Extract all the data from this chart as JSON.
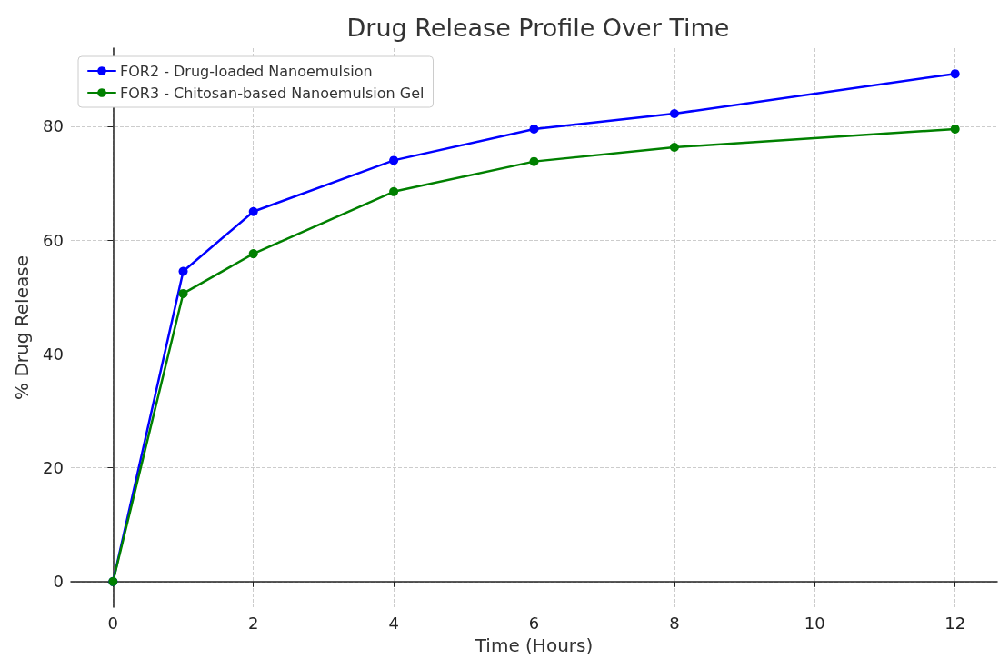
{
  "chart_data": {
    "type": "line",
    "title": "Drug Release Profile Over Time",
    "xlabel": "Time (Hours)",
    "ylabel": "% Drug Release",
    "x": [
      0,
      1,
      2,
      4,
      6,
      8,
      12
    ],
    "series": [
      {
        "name": "FOR2 - Drug-loaded Nanoemulsion",
        "color": "#0000ff",
        "values": [
          0,
          54.5,
          65,
          74,
          79.5,
          82.2,
          89.2
        ]
      },
      {
        "name": "FOR3 - Chitosan-based Nanoemulsion Gel",
        "color": "#008000",
        "values": [
          0,
          50.6,
          57.6,
          68.5,
          73.8,
          76.3,
          79.5
        ]
      }
    ],
    "xlim": [
      -0.6,
      12.6
    ],
    "xticks": [
      0,
      2,
      4,
      6,
      8,
      10,
      12
    ],
    "ylim": [
      -4.5,
      93.7
    ],
    "yticks": [
      0,
      20,
      40,
      60,
      80
    ],
    "grid": true,
    "legend": "top left",
    "marker": "circle",
    "line_style": "solid"
  }
}
